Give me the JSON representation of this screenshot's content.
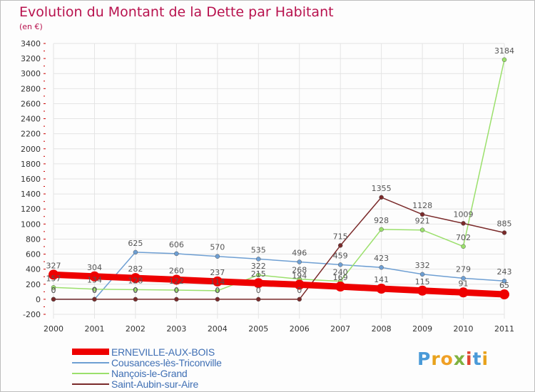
{
  "header": {
    "title": "Evolution du Montant de la Dette par Habitant",
    "subtitle": "(en €)"
  },
  "logo": {
    "text": "Proxiti",
    "letters": [
      {
        "ch": "P",
        "color": "#4a9ad8"
      },
      {
        "ch": "r",
        "color": "#e8a21c"
      },
      {
        "ch": "o",
        "color": "#f0a025"
      },
      {
        "ch": "x",
        "color": "#7fb240"
      },
      {
        "ch": "i",
        "color": "#e0432f"
      },
      {
        "ch": "t",
        "color": "#4a9ad8"
      },
      {
        "ch": "i",
        "color": "#e8a21c"
      }
    ]
  },
  "colors": {
    "title": "#b8124e",
    "legend_text": "#3f6fb4",
    "axis_text": "#333333",
    "grid": "#e4e4e4",
    "axis_tick_red": "#cc0000"
  },
  "chart_data": {
    "type": "line",
    "title": "Evolution du Montant de la Dette par Habitant",
    "ylabel": "(en €)",
    "xlabel": "",
    "x": [
      "2000",
      "2001",
      "2002",
      "2003",
      "2004",
      "2005",
      "2006",
      "2007",
      "2008",
      "2009",
      "2010",
      "2011"
    ],
    "ylim": [
      -200,
      3400
    ],
    "yticks": [
      -200,
      0,
      200,
      400,
      600,
      800,
      1000,
      1200,
      1400,
      1600,
      1800,
      2000,
      2200,
      2400,
      2600,
      2800,
      3000,
      3200,
      3400
    ],
    "grid": true,
    "legend_position": "bottom-left",
    "series": [
      {
        "name": "ERNEVILLE-AUX-BOIS",
        "color": "#ee0000",
        "width": 9,
        "marker": 7,
        "values": [
          327,
          304,
          282,
          260,
          237,
          215,
          194,
          169,
          141,
          115,
          91,
          65
        ]
      },
      {
        "name": "Cousances-lès-Triconville",
        "color": "#6e9fd3",
        "width": 1.5,
        "marker": 3,
        "values": [
          0,
          0,
          625,
          606,
          570,
          535,
          496,
          459,
          423,
          332,
          279,
          243
        ]
      },
      {
        "name": "Nançois-le-Grand",
        "color": "#9be06c",
        "width": 1.5,
        "marker": 3,
        "values": [
          157,
          134,
          128,
          122,
          114,
          322,
          268,
          240,
          928,
          921,
          702,
          3184
        ]
      },
      {
        "name": "Saint-Aubin-sur-Aire",
        "color": "#7a2a2a",
        "width": 1.5,
        "marker": 3,
        "values": [
          0,
          0,
          0,
          0,
          0,
          0,
          0,
          715,
          1355,
          1128,
          1009,
          885
        ]
      }
    ]
  }
}
